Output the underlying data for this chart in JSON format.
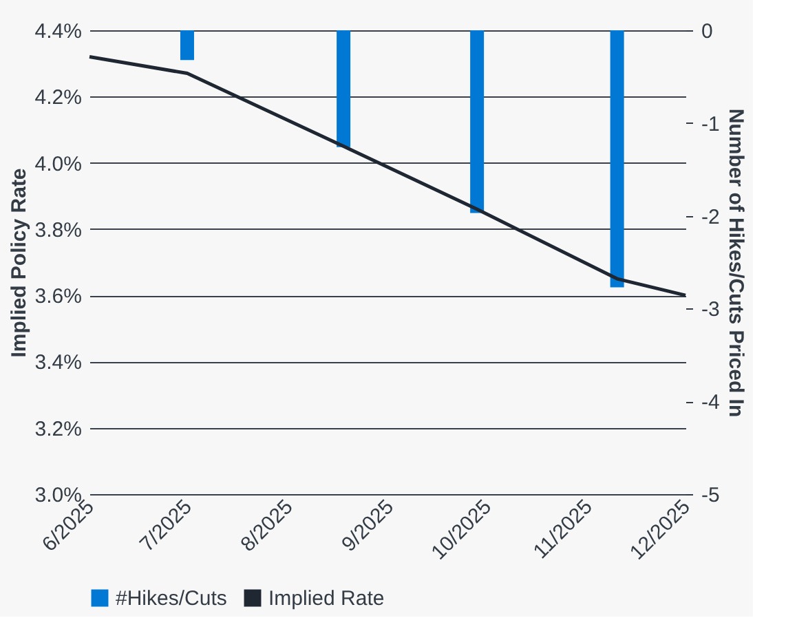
{
  "chart_data": {
    "type": "bar",
    "ylabel": "Implied Policy Rate",
    "y2label": "Number of Hikes/Cuts Priced In",
    "xlim": [
      "2025-06-01",
      "2025-12-01"
    ],
    "xticks": [
      {
        "value": "2025-06-01",
        "label": "6/2025"
      },
      {
        "value": "2025-07-01",
        "label": "7/2025"
      },
      {
        "value": "2025-08-01",
        "label": "8/2025"
      },
      {
        "value": "2025-09-01",
        "label": "9/2025"
      },
      {
        "value": "2025-10-01",
        "label": "10/2025"
      },
      {
        "value": "2025-11-01",
        "label": "11/2025"
      },
      {
        "value": "2025-12-01",
        "label": "12/2025"
      }
    ],
    "ylim": [
      3.0,
      4.4
    ],
    "yticks": [
      {
        "value": 3.0,
        "label": "3.0%"
      },
      {
        "value": 3.2,
        "label": "3.2%"
      },
      {
        "value": 3.4,
        "label": "3.4%"
      },
      {
        "value": 3.6,
        "label": "3.6%"
      },
      {
        "value": 3.8,
        "label": "3.8%"
      },
      {
        "value": 4.0,
        "label": "4.0%"
      },
      {
        "value": 4.2,
        "label": "4.2%"
      },
      {
        "value": 4.4,
        "label": "4.4%"
      }
    ],
    "y2lim": [
      -5,
      0
    ],
    "y2ticks": [
      -5,
      -4,
      -3,
      -2,
      -1,
      0
    ],
    "series": [
      {
        "name": "#Hikes/Cuts",
        "type": "bar",
        "axis": "y2",
        "color": "#0078d4",
        "x": [
          "2025-07-01",
          "2025-08-18",
          "2025-09-28",
          "2025-11-10"
        ],
        "values": [
          -0.32,
          -1.26,
          -1.97,
          -2.77
        ]
      },
      {
        "name": "Implied Rate",
        "type": "line",
        "axis": "y",
        "color": "#1f2733",
        "x": [
          "2025-06-01",
          "2025-07-01",
          "2025-08-18",
          "2025-09-28",
          "2025-11-10",
          "2025-12-01"
        ],
        "values": [
          4.32,
          4.27,
          4.05,
          3.86,
          3.65,
          3.6
        ]
      }
    ],
    "grid": "y",
    "legend": "bottom",
    "marker": "none",
    "line_style": "solid"
  }
}
